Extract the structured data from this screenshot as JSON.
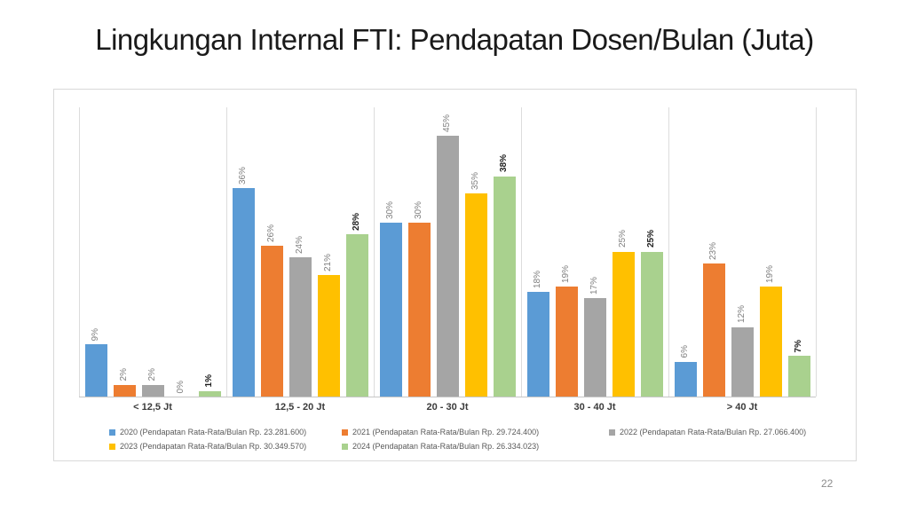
{
  "slide": {
    "title": "Lingkungan Internal FTI: Pendapatan Dosen/Bulan (Juta)",
    "page_number": "22"
  },
  "chart_data": {
    "type": "bar",
    "title": "Lingkungan Internal FTI: Pendapatan Dosen/Bulan (Juta)",
    "categories": [
      "< 12,5 Jt",
      "12,5 - 20 Jt",
      "20 - 30 Jt",
      "30 - 40 Jt",
      "> 40 Jt"
    ],
    "series": [
      {
        "name": "2020 (Pendapatan Rata-Rata/Bulan Rp. 23.281.600)",
        "year": "2020",
        "color": "#5B9BD5",
        "values": [
          9,
          36,
          30,
          18,
          6
        ],
        "label_bold": false
      },
      {
        "name": "2021 (Pendapatan Rata-Rata/Bulan Rp. 29.724.400)",
        "year": "2021",
        "color": "#ED7D31",
        "values": [
          2,
          26,
          30,
          19,
          23
        ],
        "label_bold": false
      },
      {
        "name": "2022 (Pendapatan Rata-Rata/Bulan Rp. 27.066.400)",
        "year": "2022",
        "color": "#A5A5A5",
        "values": [
          2,
          24,
          45,
          17,
          12
        ],
        "label_bold": false
      },
      {
        "name": "2023 (Pendapatan Rata-Rata/Bulan Rp. 30.349.570)",
        "year": "2023",
        "color": "#FFC000",
        "values": [
          0,
          21,
          35,
          25,
          19
        ],
        "label_bold": false
      },
      {
        "name": "2024 (Pendapatan Rata-Rata/Bulan Rp. 26.334.023)",
        "year": "2024",
        "color": "#A9D18E",
        "values": [
          1,
          28,
          38,
          25,
          7
        ],
        "label_bold": true
      }
    ],
    "value_suffix": "%",
    "ylim": [
      0,
      50
    ],
    "xlabel": "",
    "ylabel": "",
    "grid": "vertical-category-separators",
    "data_labels": "rotated-90-above-bars",
    "legend_position": "bottom"
  }
}
